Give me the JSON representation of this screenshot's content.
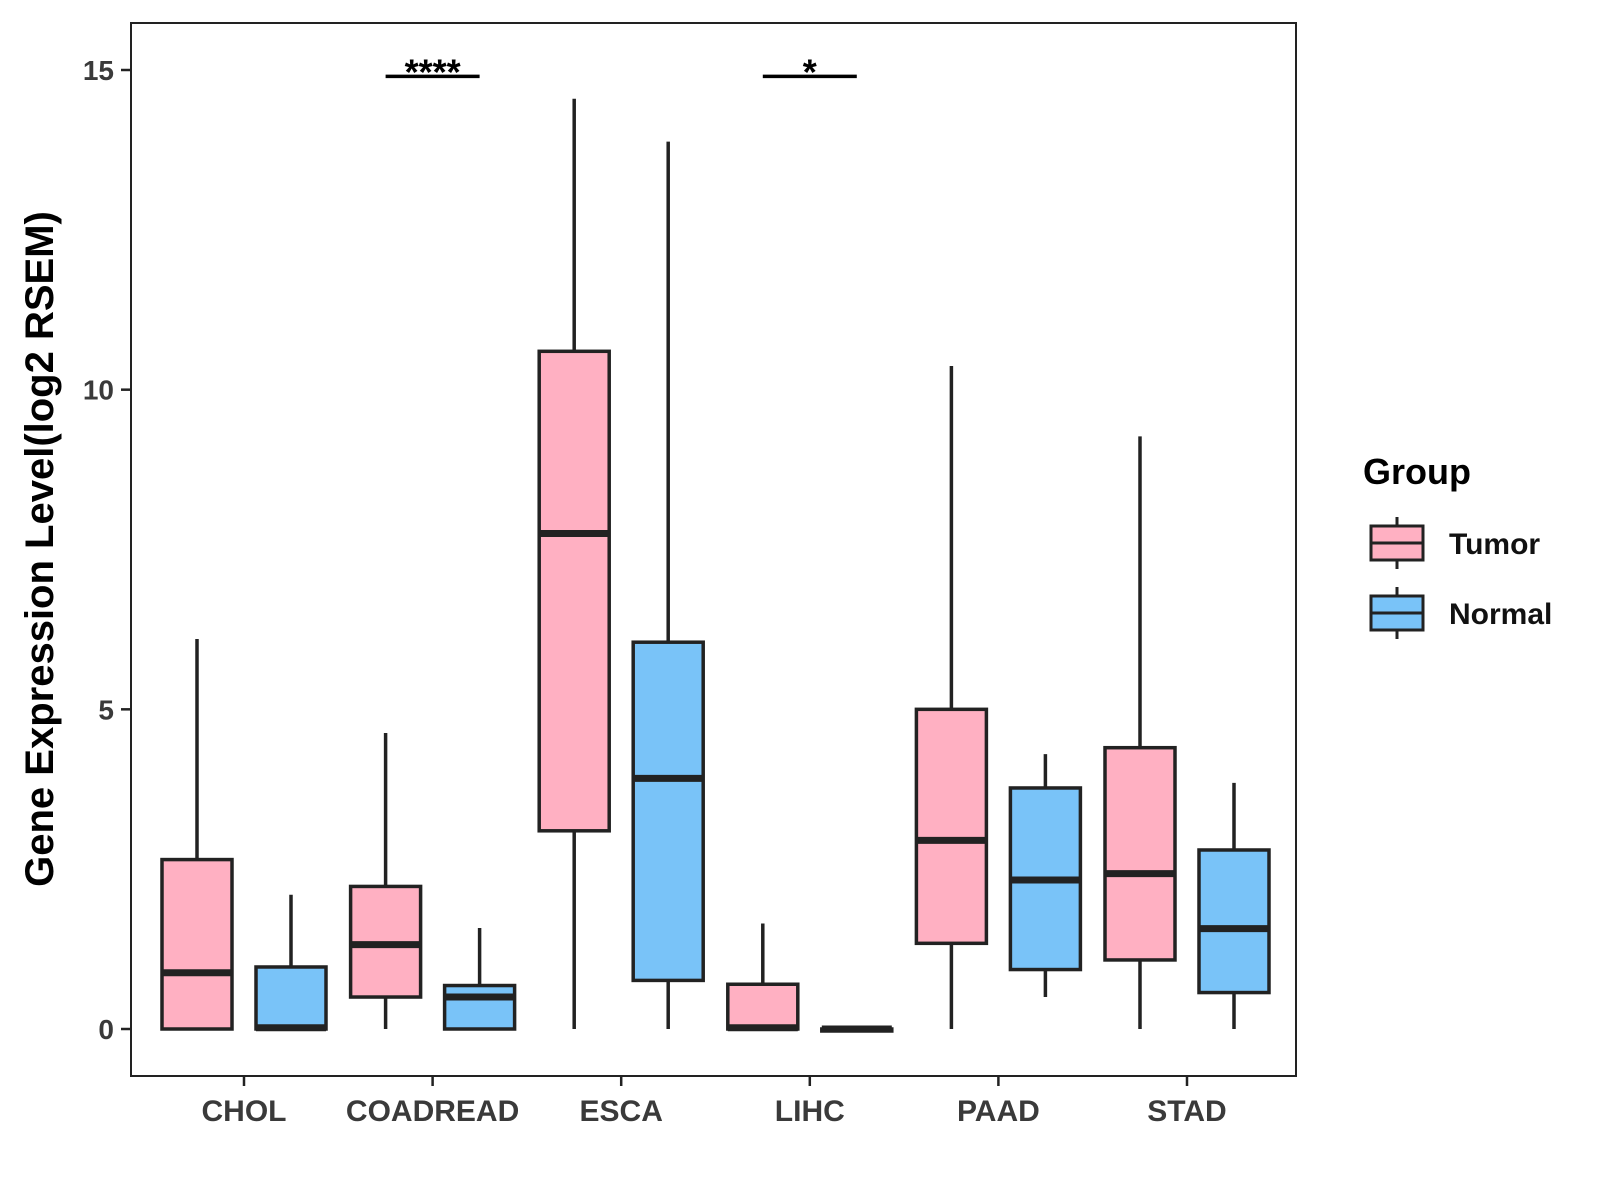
{
  "chart_data": {
    "type": "box",
    "title": "",
    "xlabel": "",
    "ylabel": "Gene Expression Level(log2 RSEM)",
    "ylim": [
      -0.75,
      15.75
    ],
    "yticks": [
      0,
      5,
      10,
      15
    ],
    "grid": false,
    "categories": [
      "CHOL",
      "COADREAD",
      "ESCA",
      "LIHC",
      "PAAD",
      "STAD"
    ],
    "legend": {
      "title": "Group",
      "placement": "right",
      "entries": [
        {
          "name": "Tumor",
          "color": "#FFB0C2"
        },
        {
          "name": "Normal",
          "color": "#79C3F8"
        }
      ]
    },
    "series": [
      {
        "name": "Tumor",
        "color": "#FFB0C2",
        "boxes": [
          {
            "min": 0,
            "q1": 0,
            "median": 0.88,
            "q3": 2.65,
            "max": 6.1
          },
          {
            "min": 0,
            "q1": 0.5,
            "median": 1.32,
            "q3": 2.23,
            "max": 4.63
          },
          {
            "min": 0,
            "q1": 3.1,
            "median": 7.75,
            "q3": 10.6,
            "max": 14.55
          },
          {
            "min": 0,
            "q1": 0,
            "median": 0.02,
            "q3": 0.7,
            "max": 1.65
          },
          {
            "min": 0,
            "q1": 1.34,
            "median": 2.95,
            "q3": 5.0,
            "max": 10.37
          },
          {
            "min": 0,
            "q1": 1.08,
            "median": 2.43,
            "q3": 4.4,
            "max": 9.27
          }
        ]
      },
      {
        "name": "Normal",
        "color": "#79C3F8",
        "boxes": [
          {
            "min": 0,
            "q1": 0,
            "median": 0.02,
            "q3": 0.97,
            "max": 2.1
          },
          {
            "min": 0,
            "q1": 0,
            "median": 0.5,
            "q3": 0.68,
            "max": 1.58
          },
          {
            "min": 0,
            "q1": 0.76,
            "median": 3.92,
            "q3": 6.05,
            "max": 13.88
          },
          {
            "min": 0,
            "q1": 0,
            "median": 0,
            "q3": 0,
            "max": 0
          },
          {
            "min": 0.5,
            "q1": 0.93,
            "median": 2.33,
            "q3": 3.77,
            "max": 4.3
          },
          {
            "min": 0,
            "q1": 0.57,
            "median": 1.57,
            "q3": 2.8,
            "max": 3.85
          }
        ]
      }
    ],
    "annotations": [
      {
        "category": "COADREAD",
        "label": "****",
        "y": 14.9
      },
      {
        "category": "LIHC",
        "label": "*",
        "y": 14.9
      }
    ]
  }
}
